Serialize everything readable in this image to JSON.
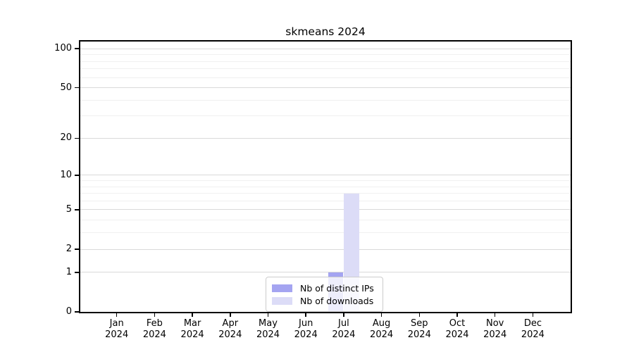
{
  "page": {
    "background": "#ffffff"
  },
  "chart_data": {
    "type": "bar",
    "title": "skmeans 2024",
    "categories": [
      "Jan",
      "Feb",
      "Mar",
      "Apr",
      "May",
      "Jun",
      "Jul",
      "Aug",
      "Sep",
      "Oct",
      "Nov",
      "Dec"
    ],
    "category_year": "2024",
    "series": [
      {
        "name": "Nb of distinct IPs",
        "color": "#a4a4f1",
        "values": [
          0,
          0,
          0,
          0,
          0,
          0,
          1,
          0,
          0,
          0,
          0,
          0
        ]
      },
      {
        "name": "Nb of downloads",
        "color": "#dcdcf7",
        "values": [
          0,
          0,
          0,
          0,
          0,
          0,
          7,
          0,
          0,
          0,
          0,
          0
        ]
      }
    ],
    "y_scale": "log1p",
    "y_tick_values": [
      0,
      1,
      2,
      5,
      10,
      20,
      50,
      100
    ],
    "y_minor_grid_values": [
      3,
      4,
      6,
      7,
      8,
      9,
      30,
      40,
      60,
      70,
      80,
      90
    ],
    "ylim": [
      0,
      113
    ],
    "xlabel": "",
    "ylabel": "",
    "grid": "horizontal",
    "legend_position": "bottom-center",
    "colors": {
      "axis": "#000000",
      "major_grid": "#d9d9d9",
      "minor_grid": "#f0f0f0",
      "legend_border": "#cccccc",
      "legend_background": "rgba(255,255,255,0.8)",
      "text": "#000000"
    }
  }
}
